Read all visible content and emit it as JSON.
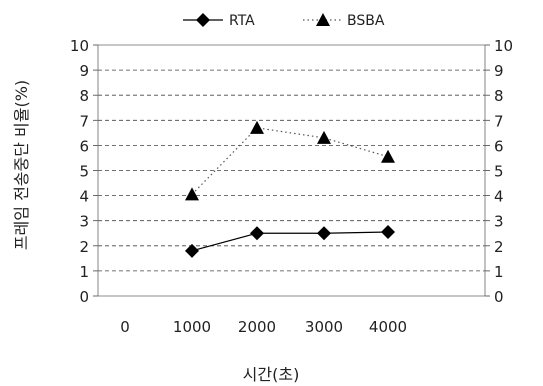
{
  "chart_data": {
    "type": "line",
    "categories": [
      "0",
      "1000",
      "2000",
      "3000",
      "4000"
    ],
    "xlabel": "시간(초)",
    "ylabel": "프레임 전송중단 비율(%)",
    "ylim": [
      0,
      10
    ],
    "yticks": [
      0,
      1,
      2,
      3,
      4,
      5,
      6,
      7,
      8,
      9,
      10
    ],
    "y2ticks": [
      0,
      1,
      2,
      3,
      4,
      5,
      6,
      7,
      8,
      9,
      10
    ],
    "grid": "horizontal dashed",
    "legend_position": "top",
    "series": [
      {
        "name": "RTA",
        "marker": "diamond",
        "line_style": "solid",
        "color": "#000000",
        "x": [
          "1000",
          "2000",
          "3000",
          "4000"
        ],
        "values": [
          1.8,
          2.5,
          2.5,
          2.55
        ]
      },
      {
        "name": "BSBA",
        "marker": "triangle",
        "line_style": "dotted",
        "color": "#000000",
        "x": [
          "1000",
          "2000",
          "3000",
          "4000"
        ],
        "values": [
          4.05,
          6.7,
          6.3,
          5.55
        ]
      }
    ]
  }
}
